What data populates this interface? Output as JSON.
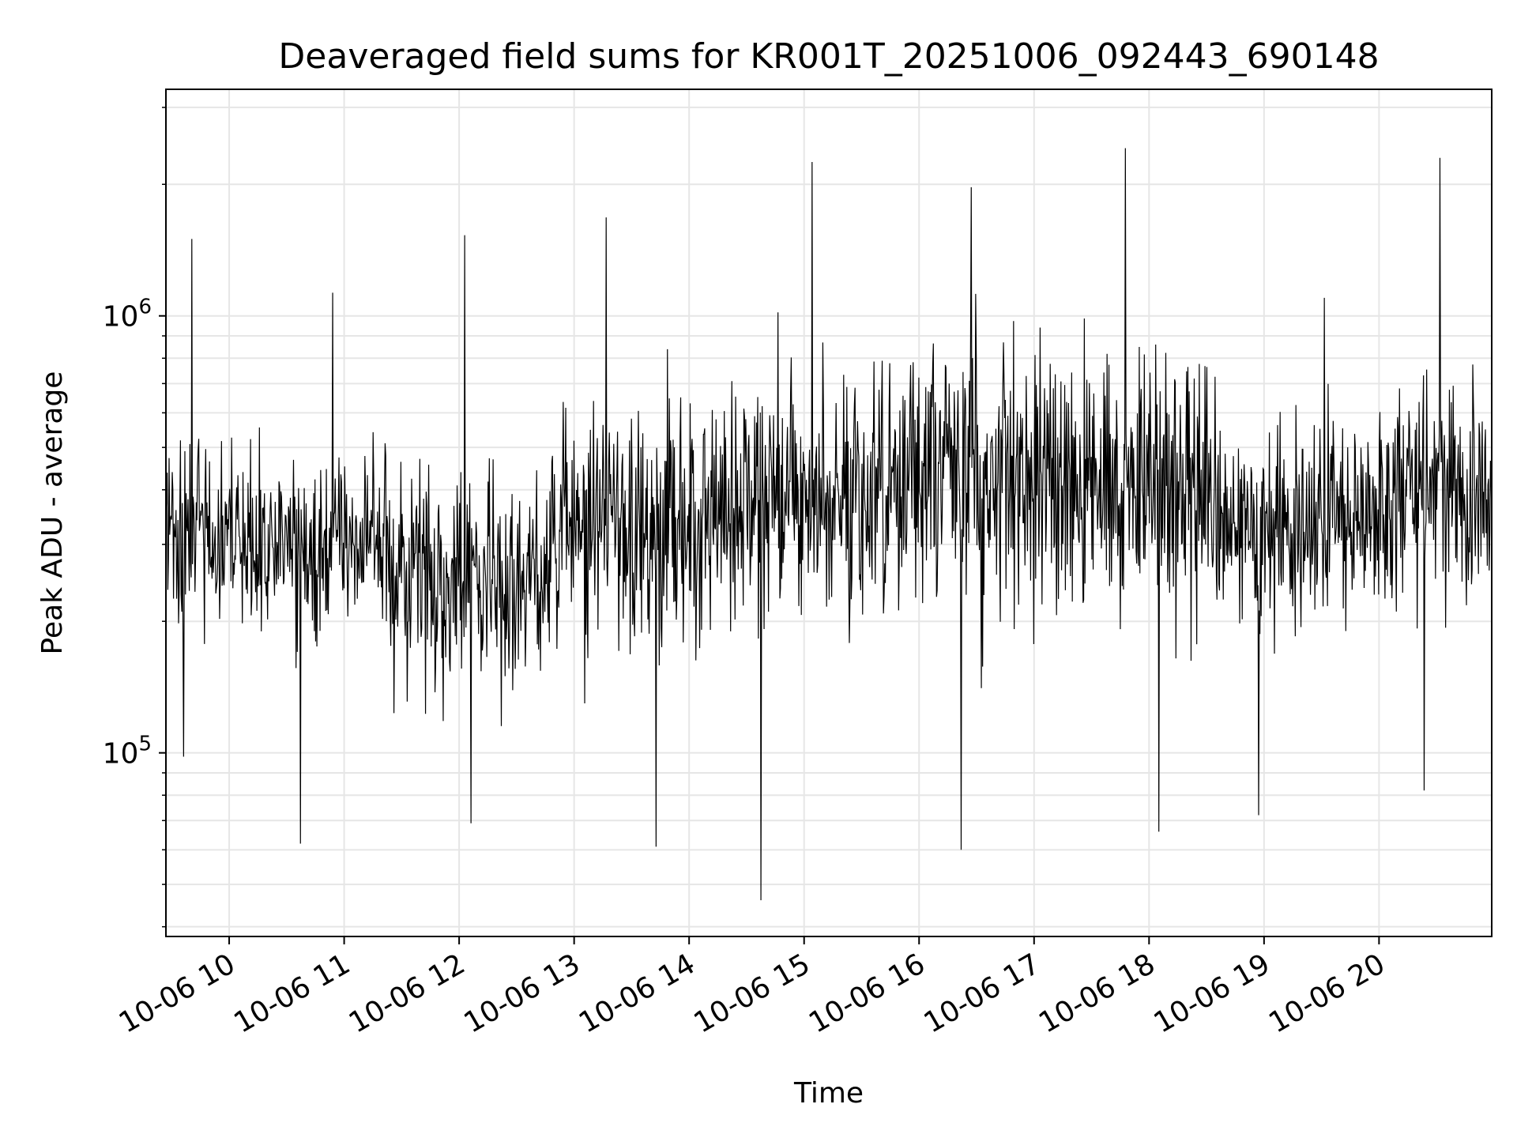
{
  "chart_data": {
    "type": "line",
    "title": "Deaveraged field sums for KR001T_20251006_092443_690148",
    "xlabel": "Time",
    "ylabel": "Peak ADU - average",
    "yscale": "log",
    "ylim": [
      38000,
      3300000
    ],
    "xlim": [
      9.45,
      20.98
    ],
    "x_tick_values": [
      10,
      11,
      12,
      13,
      14,
      15,
      16,
      17,
      18,
      19,
      20
    ],
    "x_tick_labels": [
      "10-06 10",
      "10-06 11",
      "10-06 12",
      "10-06 13",
      "10-06 14",
      "10-06 15",
      "10-06 16",
      "10-06 17",
      "10-06 18",
      "10-06 19",
      "10-06 20"
    ],
    "y_major_ticks": [
      {
        "value": 100000,
        "base": "10",
        "exp": "5"
      },
      {
        "value": 1000000,
        "base": "10",
        "exp": "6"
      }
    ],
    "y_minor_ticks": [
      40000,
      50000,
      60000,
      70000,
      80000,
      90000,
      200000,
      300000,
      400000,
      500000,
      600000,
      700000,
      800000,
      900000,
      2000000,
      3000000
    ],
    "grid": true,
    "line_color": "#000000",
    "grid_color": "#e6e6e6",
    "series": [
      {
        "name": "Peak ADU - average",
        "segments": [
          {
            "start": 9.45,
            "end": 10.2,
            "median": 320000,
            "spread": 0.3,
            "max": 1500000,
            "min": 98000
          },
          {
            "start": 10.2,
            "end": 11.4,
            "median": 300000,
            "spread": 0.26,
            "max": 1130000,
            "min": 62000
          },
          {
            "start": 11.4,
            "end": 12.8,
            "median": 250000,
            "spread": 0.32,
            "max": 1530000,
            "min": 69000
          },
          {
            "start": 12.8,
            "end": 14.2,
            "median": 330000,
            "spread": 0.36,
            "max": 1680000,
            "min": 61000
          },
          {
            "start": 14.2,
            "end": 15.6,
            "median": 380000,
            "spread": 0.38,
            "max": 2250000,
            "min": 46000
          },
          {
            "start": 15.6,
            "end": 17.3,
            "median": 420000,
            "spread": 0.38,
            "max": 1970000,
            "min": 60000
          },
          {
            "start": 17.3,
            "end": 18.6,
            "median": 400000,
            "spread": 0.36,
            "max": 2420000,
            "min": 66000
          },
          {
            "start": 18.6,
            "end": 20.0,
            "median": 330000,
            "spread": 0.3,
            "max": 1100000,
            "min": 72000
          },
          {
            "start": 20.0,
            "end": 20.98,
            "median": 400000,
            "spread": 0.34,
            "max": 2300000,
            "min": 82000
          }
        ],
        "n_points": 2100
      }
    ]
  }
}
